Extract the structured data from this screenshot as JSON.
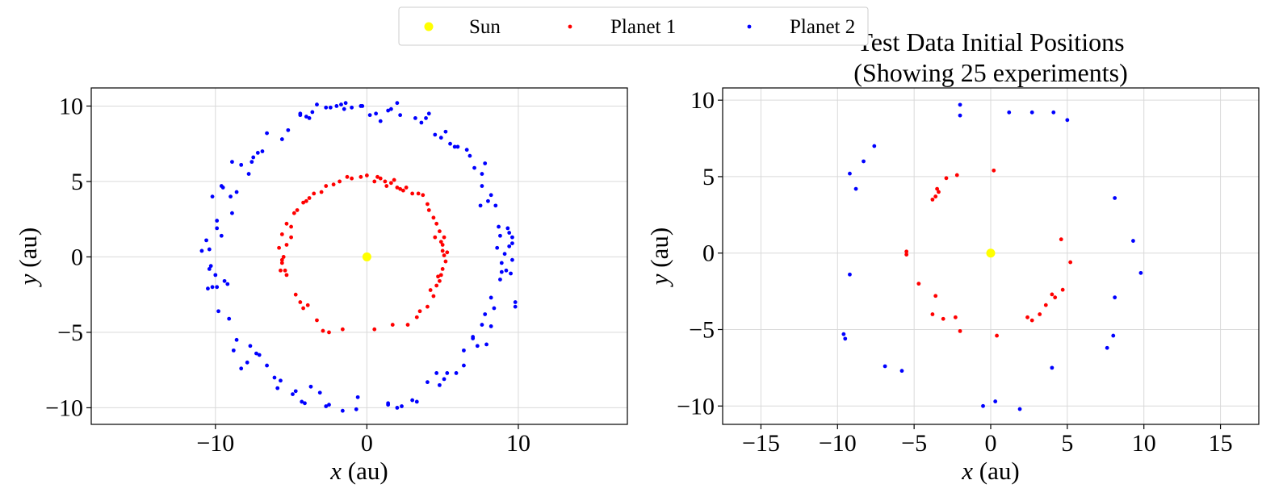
{
  "legend": {
    "placement": "top-center",
    "entries": [
      {
        "name": "Sun",
        "color": "#ffff00"
      },
      {
        "name": "Planet 1",
        "color": "#ff0000"
      },
      {
        "name": "Planet 2",
        "color": "#0000ff"
      }
    ]
  },
  "chart_data": [
    {
      "type": "scatter",
      "title": "",
      "xlabel": "x (au)",
      "ylabel": "y (au)",
      "xlim": [
        -18.2,
        17.2
      ],
      "ylim": [
        -11.1,
        11.2
      ],
      "xticks": [
        -10,
        0,
        10
      ],
      "yticks": [
        -10,
        -5,
        0,
        5,
        10
      ],
      "grid": true,
      "series": [
        {
          "name": "Sun",
          "color": "#ffff00",
          "points": [
            [
              0,
              0
            ]
          ]
        },
        {
          "name": "Planet 1",
          "color": "#ff0000",
          "points": [
            [
              0.0,
              5.4
            ],
            [
              0.9,
              5.2
            ],
            [
              1.8,
              5.1
            ],
            [
              2.6,
              4.6
            ],
            [
              3.4,
              4.2
            ],
            [
              4.0,
              3.5
            ],
            [
              4.4,
              2.6
            ],
            [
              4.8,
              1.7
            ],
            [
              5.0,
              0.8
            ],
            [
              5.1,
              0.1
            ],
            [
              5.0,
              -0.8
            ],
            [
              4.8,
              -1.6
            ],
            [
              4.4,
              -2.6
            ],
            [
              4.0,
              -3.3
            ],
            [
              3.3,
              -4.0
            ],
            [
              2.7,
              -4.5
            ],
            [
              1.7,
              -4.5
            ],
            [
              0.5,
              -4.8
            ],
            [
              -1.6,
              -4.8
            ],
            [
              -2.5,
              -5.0
            ],
            [
              -3.3,
              -4.2
            ],
            [
              -4.2,
              -3.4
            ],
            [
              -4.7,
              -2.5
            ],
            [
              -5.3,
              -1.2
            ],
            [
              -5.6,
              -0.4
            ],
            [
              -5.8,
              0.6
            ],
            [
              -5.6,
              1.5
            ],
            [
              -5.3,
              2.2
            ],
            [
              -4.8,
              2.9
            ],
            [
              -4.2,
              3.6
            ],
            [
              -3.5,
              4.2
            ],
            [
              -2.7,
              4.7
            ],
            [
              -1.8,
              5.0
            ],
            [
              -1.0,
              5.2
            ],
            [
              0.5,
              5.0
            ],
            [
              1.3,
              4.7
            ],
            [
              2.2,
              4.5
            ],
            [
              3.0,
              4.2
            ],
            [
              4.1,
              3.1
            ],
            [
              4.9,
              1.0
            ],
            [
              5.3,
              0.3
            ],
            [
              5.2,
              -0.3
            ],
            [
              4.6,
              -1.9
            ],
            [
              4.2,
              -2.2
            ],
            [
              -5.5,
              0.0
            ],
            [
              -5.7,
              -0.9
            ],
            [
              -5.0,
              2.0
            ],
            [
              -4.6,
              3.1
            ],
            [
              -3.8,
              3.9
            ],
            [
              -2.2,
              4.8
            ],
            [
              -1.3,
              5.3
            ],
            [
              1.2,
              5.0
            ],
            [
              2.0,
              4.6
            ],
            [
              3.7,
              4.1
            ],
            [
              4.6,
              2.2
            ],
            [
              5.1,
              1.3
            ],
            [
              4.9,
              -1.2
            ],
            [
              3.5,
              -3.6
            ],
            [
              -2.9,
              -4.9
            ],
            [
              -3.9,
              -3.2
            ],
            [
              -4.4,
              -3.0
            ],
            [
              -5.4,
              -0.9
            ],
            [
              -5.0,
              1.3
            ],
            [
              -3.0,
              4.3
            ],
            [
              -0.4,
              5.3
            ],
            [
              0.7,
              5.3
            ],
            [
              1.6,
              4.9
            ],
            [
              2.4,
              4.4
            ],
            [
              4.5,
              1.3
            ],
            [
              5.0,
              0.4
            ],
            [
              4.7,
              -1.3
            ],
            [
              -5.6,
              -0.2
            ],
            [
              -5.3,
              0.8
            ],
            [
              -4.0,
              3.7
            ]
          ]
        },
        {
          "name": "Planet 2",
          "color": "#0000ff",
          "points": [
            [
              -0.4,
              10.0
            ],
            [
              -1.4,
              10.2
            ],
            [
              -2.4,
              9.9
            ],
            [
              -3.3,
              10.1
            ],
            [
              -4.0,
              9.3
            ],
            [
              -5.6,
              7.8
            ],
            [
              -6.6,
              8.2
            ],
            [
              -7.5,
              6.6
            ],
            [
              -8.3,
              6.1
            ],
            [
              -9.5,
              4.6
            ],
            [
              -10.2,
              4.0
            ],
            [
              -10.6,
              1.1
            ],
            [
              -10.9,
              0.4
            ],
            [
              -10.4,
              -0.8
            ],
            [
              -9.4,
              -1.6
            ],
            [
              -10.5,
              -2.1
            ],
            [
              -9.8,
              -3.6
            ],
            [
              -8.8,
              -6.2
            ],
            [
              -7.9,
              -7.0
            ],
            [
              -7.3,
              -6.4
            ],
            [
              -6.6,
              -7.2
            ],
            [
              -5.9,
              -8.7
            ],
            [
              -4.3,
              -9.6
            ],
            [
              -3.7,
              -8.6
            ],
            [
              -3.1,
              -9.0
            ],
            [
              -0.6,
              -9.3
            ],
            [
              -0.7,
              -10.1
            ],
            [
              1.4,
              -9.8
            ],
            [
              2.0,
              -10.0
            ],
            [
              3.3,
              -9.6
            ],
            [
              4.0,
              -8.3
            ],
            [
              4.6,
              -7.7
            ],
            [
              5.3,
              -7.7
            ],
            [
              5.9,
              -7.7
            ],
            [
              6.4,
              -6.2
            ],
            [
              7.0,
              -5.3
            ],
            [
              7.6,
              -4.5
            ],
            [
              7.8,
              -3.8
            ],
            [
              7.9,
              -5.8
            ],
            [
              8.8,
              -1.5
            ],
            [
              8.9,
              -0.4
            ],
            [
              9.4,
              0.7
            ],
            [
              9.6,
              1.3
            ],
            [
              9.3,
              1.9
            ],
            [
              8.6,
              0.6
            ],
            [
              8.8,
              1.4
            ],
            [
              9.2,
              -0.9
            ],
            [
              9.8,
              -3.0
            ],
            [
              7.5,
              3.4
            ],
            [
              7.6,
              4.7
            ],
            [
              7.8,
              6.2
            ],
            [
              6.6,
              7.1
            ],
            [
              5.8,
              7.3
            ],
            [
              5.2,
              8.3
            ],
            [
              4.5,
              8.1
            ],
            [
              3.9,
              9.2
            ],
            [
              3.6,
              8.9
            ],
            [
              2.0,
              10.2
            ],
            [
              1.4,
              9.7
            ],
            [
              0.9,
              9.0
            ],
            [
              0.2,
              9.4
            ],
            [
              -1.0,
              9.9
            ],
            [
              -2.7,
              9.9
            ],
            [
              -3.8,
              9.2
            ],
            [
              -7.2,
              6.9
            ],
            [
              -7.8,
              5.5
            ],
            [
              -9.0,
              4.0
            ],
            [
              -8.9,
              2.9
            ],
            [
              -9.6,
              1.4
            ],
            [
              -9.2,
              -1.8
            ],
            [
              -10.2,
              -2.0
            ],
            [
              -7.7,
              -5.9
            ],
            [
              -6.1,
              -8.0
            ],
            [
              -4.1,
              -9.7
            ],
            [
              -2.5,
              -9.8
            ],
            [
              1.4,
              -9.7
            ],
            [
              4.8,
              -8.5
            ],
            [
              7.0,
              -5.4
            ],
            [
              8.2,
              -2.7
            ],
            [
              9.1,
              0.2
            ],
            [
              9.6,
              -0.2
            ],
            [
              8.7,
              2.0
            ],
            [
              8.2,
              4.1
            ],
            [
              7.6,
              5.5
            ],
            [
              6.0,
              7.3
            ],
            [
              4.1,
              9.5
            ],
            [
              2.2,
              9.4
            ],
            [
              -0.3,
              10.0
            ],
            [
              -2.0,
              10.0
            ],
            [
              -4.4,
              9.5
            ],
            [
              -6.9,
              7.0
            ],
            [
              -8.9,
              6.3
            ],
            [
              -9.6,
              4.7
            ],
            [
              -10.4,
              0.5
            ],
            [
              -9.9,
              -2.0
            ],
            [
              -8.3,
              -7.4
            ],
            [
              -4.9,
              -9.1
            ],
            [
              -1.6,
              -10.2
            ],
            [
              3.0,
              -9.5
            ],
            [
              6.4,
              -7.2
            ],
            [
              8.2,
              -4.6
            ],
            [
              9.8,
              -3.3
            ],
            [
              8.9,
              -1.0
            ],
            [
              9.6,
              0.9
            ],
            [
              8.0,
              3.7
            ],
            [
              6.8,
              6.7
            ],
            [
              4.9,
              7.9
            ],
            [
              1.6,
              9.8
            ],
            [
              -1.7,
              10.1
            ],
            [
              -4.4,
              9.4
            ],
            [
              -7.6,
              6.3
            ],
            [
              -9.9,
              2.4
            ],
            [
              -10.3,
              -0.6
            ],
            [
              -8.6,
              -5.5
            ],
            [
              -5.7,
              -8.2
            ],
            [
              -2.7,
              -9.9
            ],
            [
              2.3,
              -9.9
            ],
            [
              5.1,
              -8.1
            ],
            [
              7.3,
              -5.9
            ],
            [
              8.4,
              -3.4
            ],
            [
              9.5,
              -1.1
            ],
            [
              9.4,
              1.6
            ],
            [
              8.5,
              3.4
            ],
            [
              7.1,
              5.9
            ],
            [
              5.5,
              7.5
            ],
            [
              3.2,
              9.2
            ],
            [
              0.6,
              9.5
            ],
            [
              -1.5,
              9.8
            ],
            [
              -3.6,
              9.6
            ],
            [
              -5.2,
              8.4
            ],
            [
              -8.6,
              4.3
            ],
            [
              -9.9,
              1.9
            ],
            [
              -10.0,
              -1.2
            ],
            [
              -9.1,
              -4.1
            ],
            [
              -7.1,
              -6.5
            ],
            [
              -4.7,
              -8.9
            ]
          ]
        }
      ]
    },
    {
      "type": "scatter",
      "title": "Test Data Initial Positions\n(Showing 25 experiments)",
      "xlabel": "x (au)",
      "ylabel": "y (au)",
      "xlim": [
        -17.5,
        17.5
      ],
      "ylim": [
        -11.2,
        10.8
      ],
      "xticks": [
        -15,
        -10,
        -5,
        0,
        5,
        10,
        15
      ],
      "yticks": [
        -10,
        -5,
        0,
        5,
        10
      ],
      "grid": true,
      "series": [
        {
          "name": "Sun",
          "color": "#ffff00",
          "points": [
            [
              0,
              0
            ]
          ]
        },
        {
          "name": "Planet 1",
          "color": "#ff0000",
          "points": [
            [
              0.2,
              5.4
            ],
            [
              -2.2,
              5.1
            ],
            [
              -2.9,
              4.9
            ],
            [
              -3.5,
              4.2
            ],
            [
              -3.4,
              4.0
            ],
            [
              -3.6,
              3.7
            ],
            [
              -3.8,
              3.5
            ],
            [
              4.6,
              0.9
            ],
            [
              5.2,
              -0.6
            ],
            [
              -5.5,
              0.1
            ],
            [
              -5.5,
              -0.1
            ],
            [
              -4.7,
              -2.0
            ],
            [
              -3.6,
              -2.8
            ],
            [
              -3.8,
              -4.0
            ],
            [
              -3.1,
              -4.3
            ],
            [
              -2.3,
              -4.2
            ],
            [
              -2.0,
              -5.1
            ],
            [
              0.4,
              -5.4
            ],
            [
              4.7,
              -2.4
            ],
            [
              4.0,
              -2.7
            ],
            [
              4.2,
              -2.9
            ],
            [
              3.6,
              -3.4
            ],
            [
              3.2,
              -4.0
            ],
            [
              2.7,
              -4.4
            ],
            [
              2.4,
              -4.2
            ]
          ]
        },
        {
          "name": "Planet 2",
          "color": "#0000ff",
          "points": [
            [
              -2.0,
              9.7
            ],
            [
              -2.0,
              9.0
            ],
            [
              1.2,
              9.2
            ],
            [
              2.7,
              9.2
            ],
            [
              4.1,
              9.2
            ],
            [
              5.0,
              8.7
            ],
            [
              -7.6,
              7.0
            ],
            [
              -8.3,
              6.0
            ],
            [
              -9.2,
              5.2
            ],
            [
              -8.8,
              4.2
            ],
            [
              8.1,
              3.6
            ],
            [
              9.3,
              0.8
            ],
            [
              9.8,
              -1.3
            ],
            [
              8.1,
              -2.9
            ],
            [
              8.0,
              -5.4
            ],
            [
              7.6,
              -6.2
            ],
            [
              -9.2,
              -1.4
            ],
            [
              -9.6,
              -5.3
            ],
            [
              -9.5,
              -5.6
            ],
            [
              -6.9,
              -7.4
            ],
            [
              -5.8,
              -7.7
            ],
            [
              4.0,
              -7.5
            ],
            [
              0.3,
              -9.7
            ],
            [
              -0.5,
              -10.0
            ],
            [
              1.9,
              -10.2
            ]
          ]
        }
      ]
    }
  ]
}
